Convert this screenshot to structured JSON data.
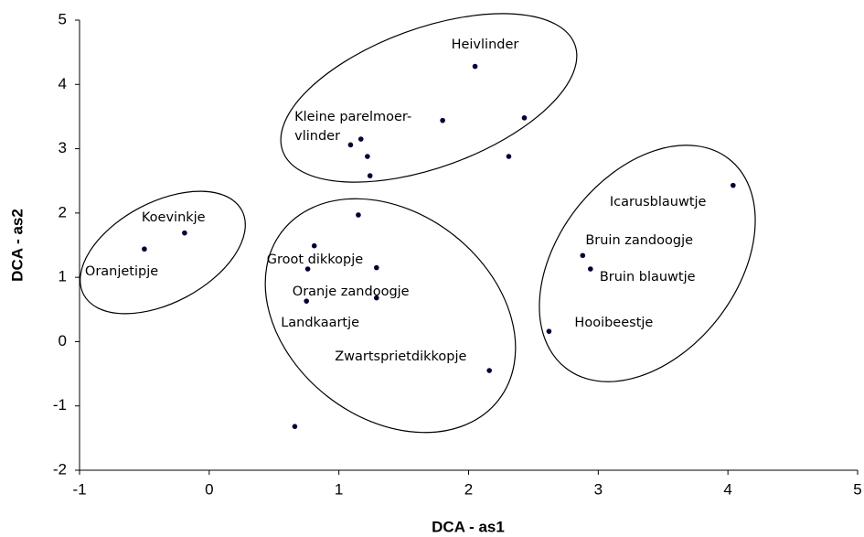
{
  "chart_data": {
    "type": "scatter",
    "xlabel": "DCA - as1",
    "ylabel": "DCA - as2",
    "x": [
      2.05,
      1.8,
      2.43,
      2.31,
      1.09,
      1.17,
      1.22,
      1.24,
      1.15,
      -0.19,
      -0.5,
      0.81,
      0.76,
      1.29,
      1.29,
      0.75,
      2.16,
      0.66,
      4.04,
      2.88,
      2.94,
      2.62
    ],
    "values": [
      4.28,
      3.44,
      3.48,
      2.88,
      3.06,
      3.15,
      2.88,
      2.58,
      1.97,
      1.69,
      1.44,
      1.49,
      1.13,
      1.15,
      0.68,
      0.63,
      -0.45,
      -1.32,
      2.43,
      1.34,
      1.13,
      0.16
    ],
    "labels": [
      "Heivlinder",
      "Kleine parelmoer-\nvlinder",
      null,
      null,
      null,
      null,
      null,
      null,
      null,
      "Koevinkje",
      "Oranjetipje",
      "Groot dikkopje",
      null,
      null,
      "Oranje zandoogje",
      "Landkaartje",
      "Zwartsprietdikkopje",
      null,
      "Icarusblauwtje",
      "Bruin zandoogje",
      "Bruin blauwtje",
      "Hooibeestje"
    ],
    "color": "#000033",
    "xlim": [
      -1,
      5
    ],
    "xticks": [
      -1,
      0,
      1,
      2,
      3,
      4,
      5
    ],
    "ylim": [
      -2,
      5
    ],
    "yticks": [
      -2,
      -1,
      0,
      1,
      2,
      3,
      4,
      5
    ],
    "grid": false
  }
}
